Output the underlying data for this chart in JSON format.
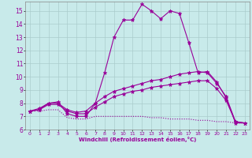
{
  "background_color": "#c8eaea",
  "grid_color": "#aacccc",
  "line_color": "#990099",
  "xlim": [
    -0.5,
    23.5
  ],
  "ylim": [
    6,
    15.7
  ],
  "yticks": [
    6,
    7,
    8,
    9,
    10,
    11,
    12,
    13,
    14,
    15
  ],
  "xticks": [
    0,
    1,
    2,
    3,
    4,
    5,
    6,
    7,
    8,
    9,
    10,
    11,
    12,
    13,
    14,
    15,
    16,
    17,
    18,
    19,
    20,
    21,
    22,
    23
  ],
  "xlabel": "Windchill (Refroidissement éolien,°C)",
  "series": [
    {
      "x": [
        0,
        1,
        2,
        3,
        4,
        5,
        6,
        7,
        8,
        9,
        10,
        11,
        12,
        13,
        14,
        15,
        16,
        17,
        18,
        19,
        20,
        21,
        22,
        23
      ],
      "y": [
        7.4,
        7.6,
        8.0,
        8.1,
        7.2,
        7.0,
        7.0,
        8.0,
        10.3,
        13.0,
        14.3,
        14.3,
        15.5,
        15.0,
        14.4,
        15.0,
        14.8,
        12.6,
        10.3,
        10.4,
        9.6,
        8.4,
        6.5,
        6.5
      ],
      "linestyle": "-",
      "has_marker": true
    },
    {
      "x": [
        0,
        1,
        2,
        3,
        4,
        5,
        6,
        7,
        8,
        9,
        10,
        11,
        12,
        13,
        14,
        15,
        16,
        17,
        18,
        19,
        20,
        21,
        22,
        23
      ],
      "y": [
        7.4,
        7.5,
        8.0,
        8.0,
        7.5,
        7.3,
        7.4,
        8.0,
        8.5,
        8.9,
        9.1,
        9.3,
        9.5,
        9.7,
        9.8,
        10.0,
        10.2,
        10.3,
        10.4,
        10.3,
        9.5,
        8.5,
        6.6,
        6.5
      ],
      "linestyle": "-",
      "has_marker": true
    },
    {
      "x": [
        0,
        1,
        2,
        3,
        4,
        5,
        6,
        7,
        8,
        9,
        10,
        11,
        12,
        13,
        14,
        15,
        16,
        17,
        18,
        19,
        20,
        21,
        22,
        23
      ],
      "y": [
        7.4,
        7.5,
        7.9,
        7.9,
        7.4,
        7.2,
        7.2,
        7.7,
        8.1,
        8.5,
        8.7,
        8.9,
        9.0,
        9.2,
        9.3,
        9.4,
        9.5,
        9.6,
        9.7,
        9.7,
        9.1,
        8.2,
        6.6,
        6.5
      ],
      "linestyle": "-",
      "has_marker": true
    },
    {
      "x": [
        0,
        1,
        2,
        3,
        4,
        5,
        6,
        7,
        8,
        9,
        10,
        11,
        12,
        13,
        14,
        15,
        16,
        17,
        18,
        19,
        20,
        21,
        22,
        23
      ],
      "y": [
        7.4,
        7.4,
        7.5,
        7.5,
        6.9,
        6.8,
        6.8,
        7.0,
        7.0,
        7.0,
        7.0,
        7.0,
        7.0,
        6.9,
        6.9,
        6.8,
        6.8,
        6.8,
        6.7,
        6.7,
        6.6,
        6.6,
        6.5,
        6.5
      ],
      "linestyle": ":",
      "has_marker": false
    }
  ]
}
